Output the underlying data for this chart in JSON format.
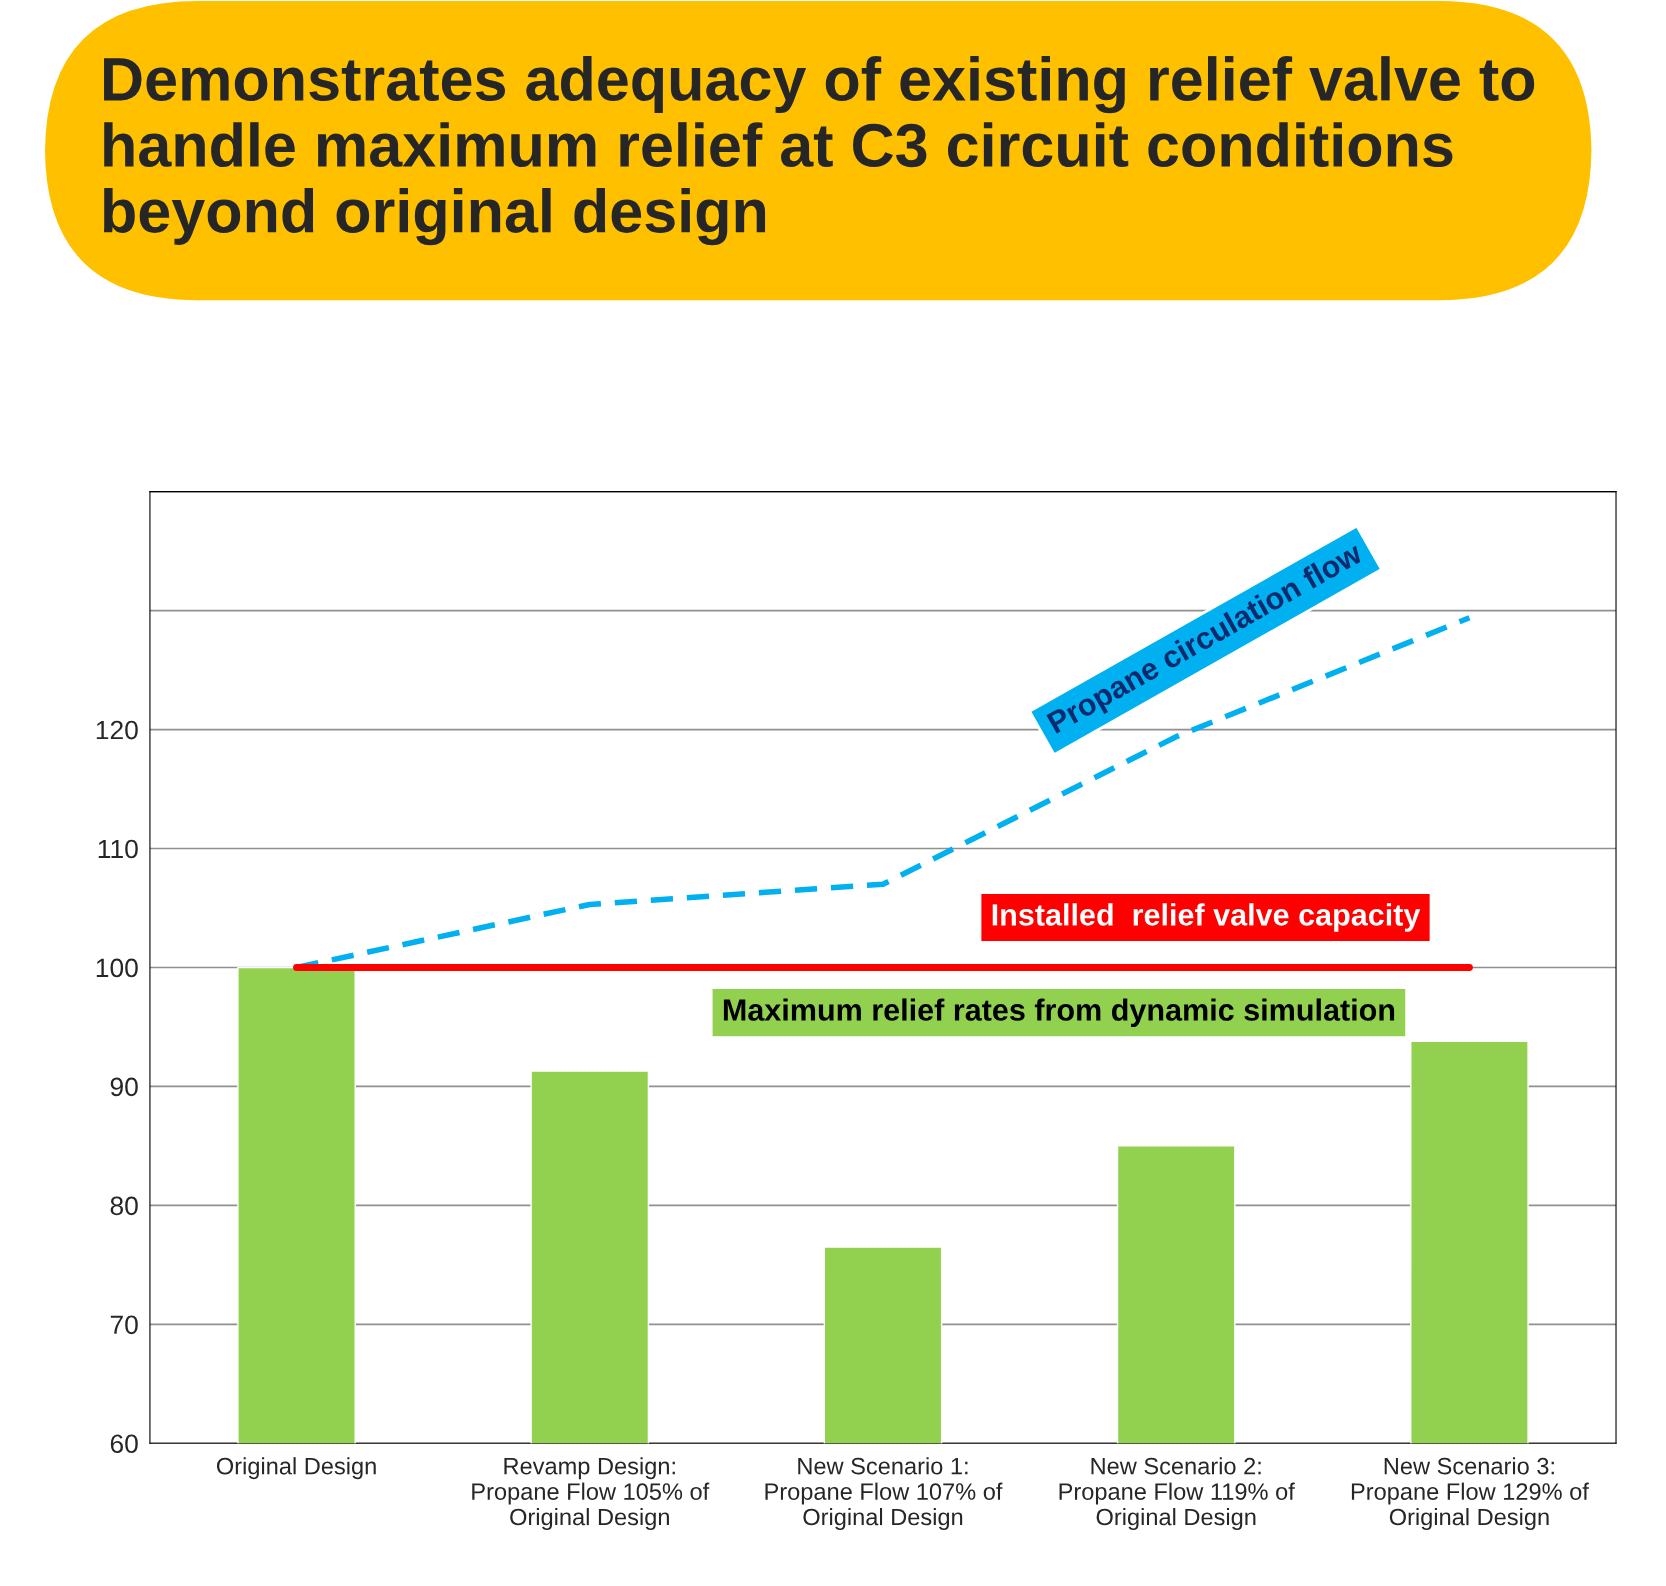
{
  "chart_data": {
    "type": "bar",
    "title": "Demonstrates adequacy of existing relief valve to handle maximum relief at C3 circuit conditions beyond original design",
    "categories": [
      "Original Design",
      "Revamp Design:\nPropane Flow 105% of\nOriginal Design",
      "New Scenario 1:\nPropane Flow 107% of\nOriginal Design",
      "New Scenario 2:\nPropane Flow 119% of\nOriginal Design",
      "New Scenario 3:\nPropane Flow 129% of\nOriginal Design"
    ],
    "series": [
      {
        "name": "Maximum relief rates from dynamic simulation",
        "color": "#92d050",
        "values": [
          100,
          91.3,
          76.5,
          85,
          93.8
        ]
      },
      {
        "name": "Propane circulation flow",
        "type": "line",
        "color": "#00b0f0",
        "line_style": "dashed",
        "values": [
          100,
          105.3,
          107,
          119.4,
          129.4
        ]
      }
    ],
    "ref_lines": [
      {
        "axis": "y",
        "value": 100,
        "label": "Installed  relief valve capacity",
        "color": "#ff0000"
      }
    ],
    "ylim": [
      60,
      140
    ],
    "yticks": [
      60,
      70,
      80,
      90,
      100,
      110,
      120,
      {
        "value": 130,
        "label": null
      },
      {
        "value": 140,
        "label": null
      }
    ],
    "grid": "y",
    "legend": false
  }
}
